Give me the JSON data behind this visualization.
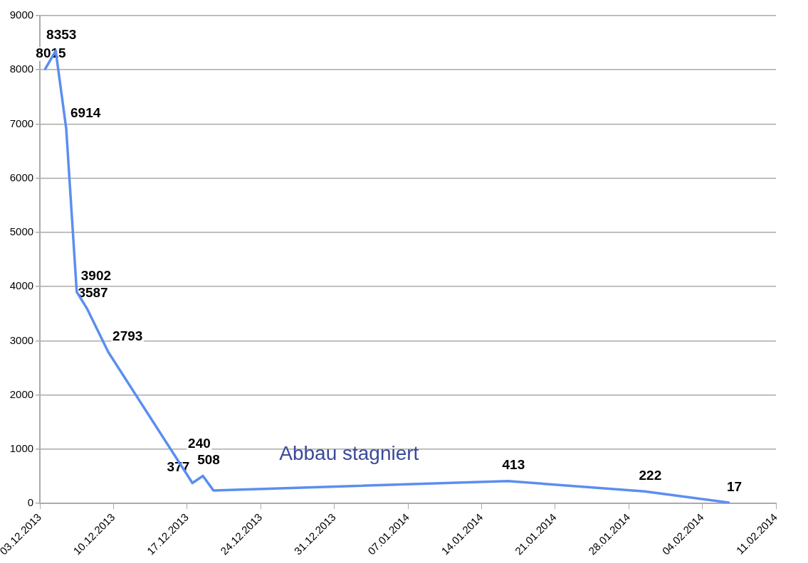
{
  "chart_data": {
    "type": "line",
    "x": [
      "2013-12-03T12:00",
      "2013-12-04T12:00",
      "2013-12-05T12:00",
      "2013-12-06T12:00",
      "2013-12-07T12:00",
      "2013-12-09T12:00",
      "2013-12-17T12:00",
      "2013-12-18T12:00",
      "2013-12-19T12:00",
      "2014-01-16T12:00",
      "2014-01-29T12:00",
      "2014-02-06T12:00"
    ],
    "series": [
      {
        "color": "#5b8ef0",
        "values": [
          8015,
          8353,
          6914,
          3902,
          3587,
          2793,
          377,
          508,
          240,
          413,
          222,
          17
        ]
      }
    ],
    "xlim": [
      "2013-12-03",
      "2014-02-11"
    ],
    "xticks": [
      {
        "value": "2013-12-03",
        "label": "03.12.2013"
      },
      {
        "value": "2013-12-10",
        "label": "10.12.2013"
      },
      {
        "value": "2013-12-17",
        "label": "17.12.2013"
      },
      {
        "value": "2013-12-24",
        "label": "24.12.2013"
      },
      {
        "value": "2013-12-31",
        "label": "31.12.2013"
      },
      {
        "value": "2014-01-07",
        "label": "07.01.2014"
      },
      {
        "value": "2014-01-14",
        "label": "14.01.2014"
      },
      {
        "value": "2014-01-21",
        "label": "21.01.2014"
      },
      {
        "value": "2014-01-28",
        "label": "28.01.2014"
      },
      {
        "value": "2014-02-04",
        "label": "04.02.2014"
      },
      {
        "value": "2014-02-11",
        "label": "11.02.2014"
      }
    ],
    "ylim": [
      0,
      9000
    ],
    "yticks": [
      0,
      1000,
      2000,
      3000,
      4000,
      5000,
      6000,
      7000,
      8000,
      9000
    ],
    "grid": "y",
    "legend": false,
    "marker": "none",
    "line_style": "solid",
    "data_labels": true,
    "annotations": [
      "Abbau stagniert"
    ]
  }
}
